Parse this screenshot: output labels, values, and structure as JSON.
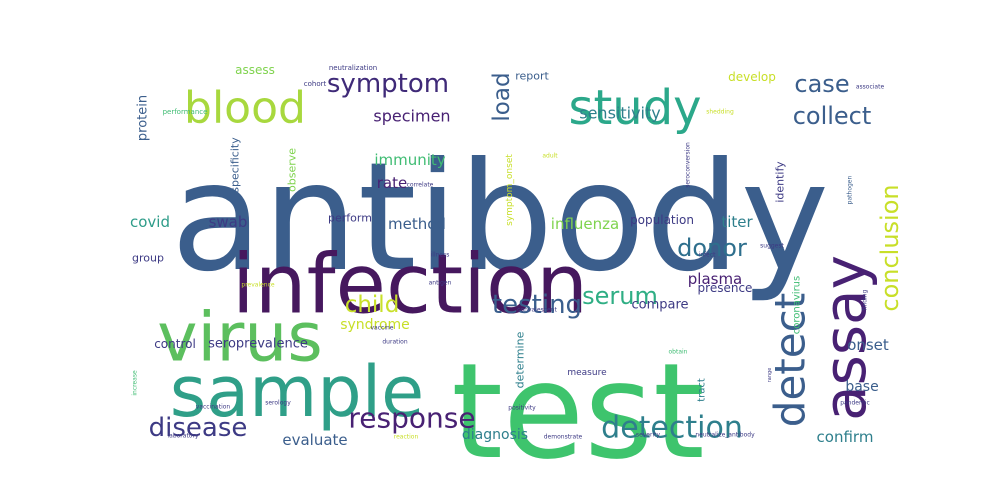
{
  "chart_data": {
    "type": "wordcloud",
    "title": "",
    "colormap": "viridis",
    "words": [
      {
        "text": "antibody",
        "weight": 1.0,
        "color": "#3b5e8c",
        "rotate": false
      },
      {
        "text": "test",
        "weight": 0.98,
        "color": "#3ec46d",
        "rotate": false
      },
      {
        "text": "infection",
        "weight": 0.72,
        "color": "#46185e",
        "rotate": false
      },
      {
        "text": "sample",
        "weight": 0.6,
        "color": "#2f9f88",
        "rotate": false
      },
      {
        "text": "virus",
        "weight": 0.58,
        "color": "#5cbf5e",
        "rotate": false
      },
      {
        "text": "assay",
        "weight": 0.5,
        "color": "#482173",
        "rotate": true
      },
      {
        "text": "study",
        "weight": 0.42,
        "color": "#2ba88a",
        "rotate": false
      },
      {
        "text": "blood",
        "weight": 0.38,
        "color": "#a8d83e",
        "rotate": false
      },
      {
        "text": "detect",
        "weight": 0.34,
        "color": "#3b5e8c",
        "rotate": true
      },
      {
        "text": "detection",
        "weight": 0.28,
        "color": "#2e7f8c",
        "rotate": false
      },
      {
        "text": "response",
        "weight": 0.26,
        "color": "#482173",
        "rotate": false
      },
      {
        "text": "disease",
        "weight": 0.25,
        "color": "#3d3a84",
        "rotate": false
      },
      {
        "text": "symptom",
        "weight": 0.24,
        "color": "#3f2a78",
        "rotate": false
      },
      {
        "text": "testing",
        "weight": 0.23,
        "color": "#3a5f8d",
        "rotate": false
      },
      {
        "text": "conclusion",
        "weight": 0.22,
        "color": "#c8df28",
        "rotate": true
      },
      {
        "text": "case",
        "weight": 0.21,
        "color": "#3b5e8c",
        "rotate": false
      },
      {
        "text": "collect",
        "weight": 0.2,
        "color": "#3b5e8c",
        "rotate": false
      },
      {
        "text": "serum",
        "weight": 0.2,
        "color": "#2fae84",
        "rotate": false
      },
      {
        "text": "donor",
        "weight": 0.2,
        "color": "#2e6f8d",
        "rotate": false
      },
      {
        "text": "child",
        "weight": 0.19,
        "color": "#c9e02a",
        "rotate": false
      },
      {
        "text": "load",
        "weight": 0.19,
        "color": "#3b5e8c",
        "rotate": true
      },
      {
        "text": "specimen",
        "weight": 0.14,
        "color": "#482173",
        "rotate": false
      },
      {
        "text": "sensitivity",
        "weight": 0.13,
        "color": "#2e7f8c",
        "rotate": false
      },
      {
        "text": "immunity",
        "weight": 0.13,
        "color": "#3fbc73",
        "rotate": false
      },
      {
        "text": "rate",
        "weight": 0.13,
        "color": "#482173",
        "rotate": false
      },
      {
        "text": "method",
        "weight": 0.13,
        "color": "#3b5e8c",
        "rotate": false
      },
      {
        "text": "influenza",
        "weight": 0.13,
        "color": "#7fd34e",
        "rotate": false
      },
      {
        "text": "covid",
        "weight": 0.13,
        "color": "#2e9c89",
        "rotate": false
      },
      {
        "text": "swab",
        "weight": 0.13,
        "color": "#3d3a84",
        "rotate": false
      },
      {
        "text": "titer",
        "weight": 0.13,
        "color": "#2e7f8c",
        "rotate": false
      },
      {
        "text": "plasma",
        "weight": 0.13,
        "color": "#482173",
        "rotate": false
      },
      {
        "text": "evaluate",
        "weight": 0.13,
        "color": "#3b5e8c",
        "rotate": false
      },
      {
        "text": "diagnosis",
        "weight": 0.13,
        "color": "#2e7f8c",
        "rotate": false
      },
      {
        "text": "confirm",
        "weight": 0.13,
        "color": "#2e7f8c",
        "rotate": false
      },
      {
        "text": "onset",
        "weight": 0.13,
        "color": "#3b5e8c",
        "rotate": false
      },
      {
        "text": "base",
        "weight": 0.12,
        "color": "#3b5e8c",
        "rotate": false
      },
      {
        "text": "syndrome",
        "weight": 0.12,
        "color": "#c8df28",
        "rotate": false
      },
      {
        "text": "compare",
        "weight": 0.11,
        "color": "#3d3a84",
        "rotate": false
      },
      {
        "text": "presence",
        "weight": 0.11,
        "color": "#3d3a84",
        "rotate": false
      },
      {
        "text": "seroprevalence",
        "weight": 0.11,
        "color": "#3d3a84",
        "rotate": false
      },
      {
        "text": "control",
        "weight": 0.11,
        "color": "#3d3a84",
        "rotate": false
      },
      {
        "text": "population",
        "weight": 0.11,
        "color": "#3d3a84",
        "rotate": false
      },
      {
        "text": "develop",
        "weight": 0.11,
        "color": "#c8df28",
        "rotate": false
      },
      {
        "text": "assess",
        "weight": 0.1,
        "color": "#7fd34e",
        "rotate": false
      },
      {
        "text": "protein",
        "weight": 0.11,
        "color": "#3b5e8c",
        "rotate": true
      },
      {
        "text": "specificity",
        "weight": 0.1,
        "color": "#3b5e8c",
        "rotate": true
      },
      {
        "text": "observe",
        "weight": 0.1,
        "color": "#7fd34e",
        "rotate": true
      },
      {
        "text": "identify",
        "weight": 0.1,
        "color": "#3d3a84",
        "rotate": true
      },
      {
        "text": "determine",
        "weight": 0.1,
        "color": "#2e7f8c",
        "rotate": true
      },
      {
        "text": "symptom_onset",
        "weight": 0.09,
        "color": "#c8df28",
        "rotate": true
      },
      {
        "text": "coronavirus",
        "weight": 0.09,
        "color": "#3fbc73",
        "rotate": true
      },
      {
        "text": "tract",
        "weight": 0.09,
        "color": "#2e7f8c",
        "rotate": true
      },
      {
        "text": "group",
        "weight": 0.09,
        "color": "#3d3a84",
        "rotate": false
      },
      {
        "text": "perform",
        "weight": 0.09,
        "color": "#3d3a84",
        "rotate": false
      },
      {
        "text": "report",
        "weight": 0.08,
        "color": "#3b5e8c",
        "rotate": false
      },
      {
        "text": "measure",
        "weight": 0.08,
        "color": "#3d3a84",
        "rotate": false
      },
      {
        "text": "neutralization",
        "weight": 0.06,
        "color": "#3d3a84",
        "rotate": false
      },
      {
        "text": "cohort",
        "weight": 0.06,
        "color": "#3d3a84",
        "rotate": false
      },
      {
        "text": "performance",
        "weight": 0.06,
        "color": "#3fbc73",
        "rotate": false
      },
      {
        "text": "associate",
        "weight": 0.05,
        "color": "#3d3a84",
        "rotate": false
      },
      {
        "text": "shedding",
        "weight": 0.06,
        "color": "#c8df28",
        "rotate": false
      },
      {
        "text": "correlate",
        "weight": 0.06,
        "color": "#3d3a84",
        "rotate": false
      },
      {
        "text": "adult",
        "weight": 0.05,
        "color": "#c8df28",
        "rotate": false
      },
      {
        "text": "seroconversion",
        "weight": 0.05,
        "color": "#3d3a84",
        "rotate": true
      },
      {
        "text": "pathogen",
        "weight": 0.05,
        "color": "#3b5e8c",
        "rotate": true
      },
      {
        "text": "suggest",
        "weight": 0.05,
        "color": "#3d3a84",
        "rotate": false
      },
      {
        "text": "infect",
        "weight": 0.05,
        "color": "#3d3a84",
        "rotate": false
      },
      {
        "text": "illness",
        "weight": 0.05,
        "color": "#3d3a84",
        "rotate": false
      },
      {
        "text": "prevalence",
        "weight": 0.05,
        "color": "#c8df28",
        "rotate": false
      },
      {
        "text": "antigen",
        "weight": 0.05,
        "color": "#3d3a84",
        "rotate": false
      },
      {
        "text": "finding",
        "weight": 0.05,
        "color": "#3d3a84",
        "rotate": true
      },
      {
        "text": "vaccine",
        "weight": 0.05,
        "color": "#3d3a84",
        "rotate": false
      },
      {
        "text": "convalescent",
        "weight": 0.05,
        "color": "#3d3a84",
        "rotate": false
      },
      {
        "text": "duration",
        "weight": 0.05,
        "color": "#3d3a84",
        "rotate": false
      },
      {
        "text": "obtain",
        "weight": 0.05,
        "color": "#3fbc73",
        "rotate": false
      },
      {
        "text": "range",
        "weight": 0.04,
        "color": "#3d3a84",
        "rotate": true
      },
      {
        "text": "increase",
        "weight": 0.05,
        "color": "#3fbc73",
        "rotate": true
      },
      {
        "text": "vaccination",
        "weight": 0.05,
        "color": "#3d3a84",
        "rotate": false
      },
      {
        "text": "serology",
        "weight": 0.05,
        "color": "#3d3a84",
        "rotate": false
      },
      {
        "text": "positivity",
        "weight": 0.05,
        "color": "#3d3a84",
        "rotate": false
      },
      {
        "text": "pandemic",
        "weight": 0.05,
        "color": "#3d3a84",
        "rotate": false
      },
      {
        "text": "laboratory",
        "weight": 0.05,
        "color": "#3d3a84",
        "rotate": false
      },
      {
        "text": "reaction",
        "weight": 0.05,
        "color": "#c8df28",
        "rotate": false
      },
      {
        "text": "demonstrate",
        "weight": 0.05,
        "color": "#3d3a84",
        "rotate": false
      },
      {
        "text": "severity",
        "weight": 0.05,
        "color": "#3d3a84",
        "rotate": false
      },
      {
        "text": "neutralize_antibody",
        "weight": 0.05,
        "color": "#3d3a84",
        "rotate": false
      }
    ]
  }
}
